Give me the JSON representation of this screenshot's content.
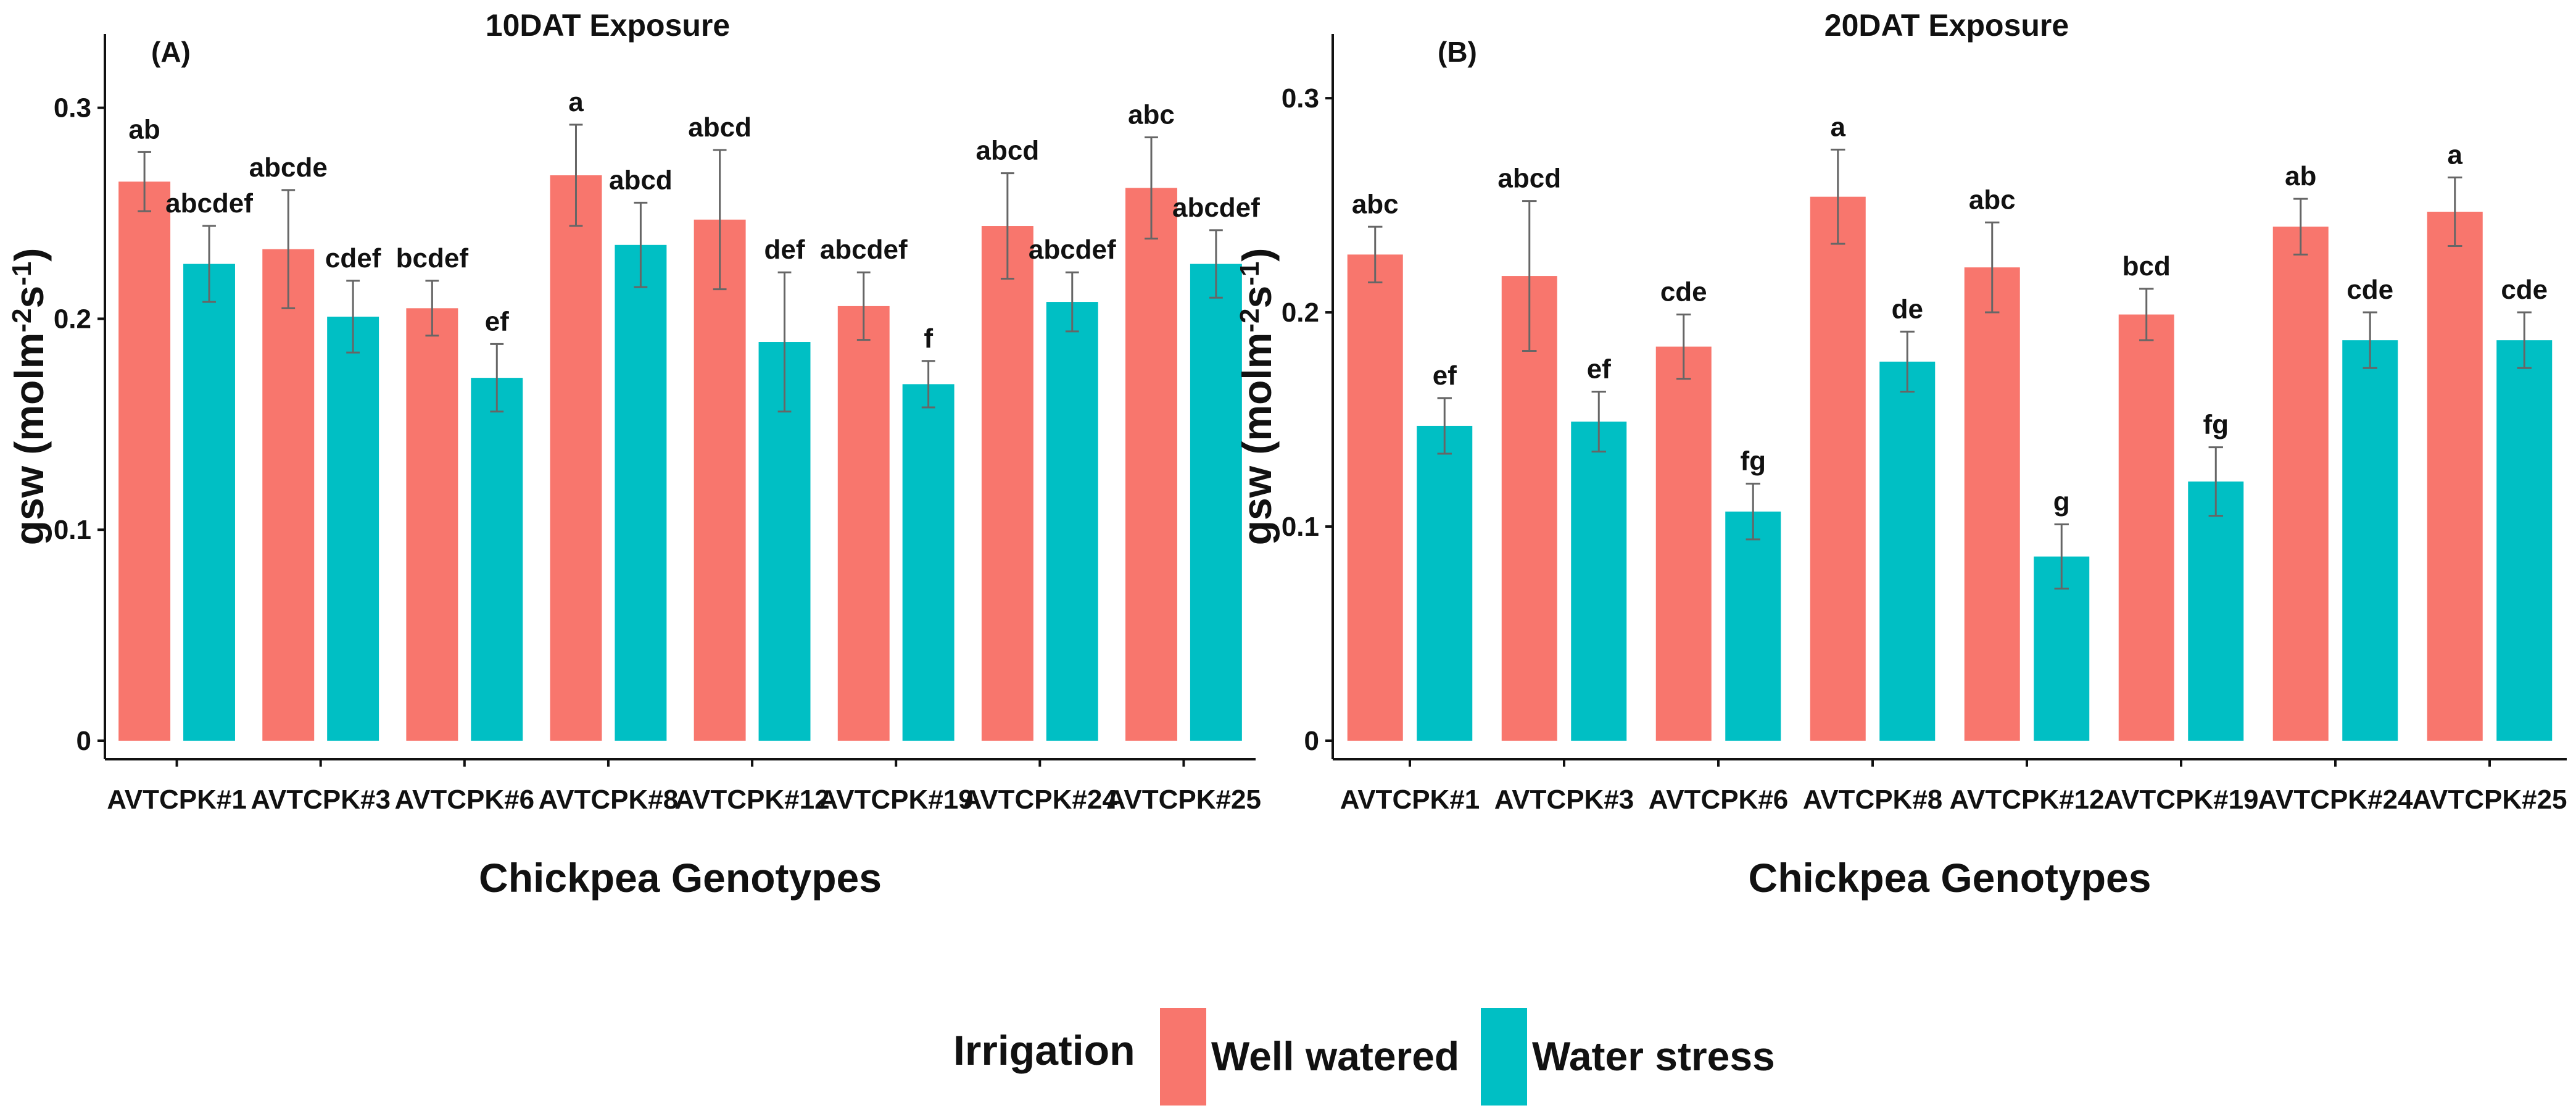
{
  "legend": {
    "title": "Irrigation",
    "items": [
      {
        "label": "Well watered",
        "color": "#F8766D"
      },
      {
        "label": "Water stress",
        "color": "#00BFC4"
      }
    ]
  },
  "chart_data": [
    {
      "type": "bar",
      "panel_label": "(A)",
      "title": "10DAT Exposure",
      "xlabel": "Chickpea Genotypes",
      "ylabel": "gsw (molm-2s-1)",
      "ylim": [
        0,
        0.335
      ],
      "yticks": [
        0,
        0.1,
        0.2,
        0.3
      ],
      "ytick_labels": [
        "0",
        "0.1",
        "0.2",
        "0.3"
      ],
      "categories": [
        "AVTCPK#1",
        "AVTCPK#3",
        "AVTCPK#6",
        "AVTCPK#8",
        "AVTCPK#12",
        "AVTCPK#19",
        "AVTCPK#24",
        "AVTCPK#25"
      ],
      "series": [
        {
          "name": "Well watered",
          "color": "#F8766D",
          "values": [
            0.265,
            0.233,
            0.205,
            0.268,
            0.247,
            0.206,
            0.244,
            0.262
          ],
          "errors": [
            0.014,
            0.028,
            0.013,
            0.024,
            0.033,
            0.016,
            0.025,
            0.024
          ],
          "letters": [
            "ab",
            "abcde",
            "bcdef",
            "a",
            "abcd",
            "abcdef",
            "abcd",
            "abc"
          ]
        },
        {
          "name": "Water stress",
          "color": "#00BFC4",
          "values": [
            0.226,
            0.201,
            0.172,
            0.235,
            0.189,
            0.169,
            0.208,
            0.226
          ],
          "errors": [
            0.018,
            0.017,
            0.016,
            0.02,
            0.033,
            0.011,
            0.014,
            0.016
          ],
          "letters": [
            "abcdef",
            "cdef",
            "ef",
            "abcd",
            "def",
            "f",
            "abcdef",
            "abcdef"
          ]
        }
      ]
    },
    {
      "type": "bar",
      "panel_label": "(B)",
      "title": "20DAT Exposure",
      "xlabel": "Chickpea Genotypes",
      "ylabel": "gsw (molm-2s-1)",
      "ylim": [
        0,
        0.33
      ],
      "yticks": [
        0,
        0.1,
        0.2,
        0.3
      ],
      "ytick_labels": [
        "0",
        "0.1",
        "0.2",
        "0.3"
      ],
      "categories": [
        "AVTCPK#1",
        "AVTCPK#3",
        "AVTCPK#6",
        "AVTCPK#8",
        "AVTCPK#12",
        "AVTCPK#19",
        "AVTCPK#24",
        "AVTCPK#25"
      ],
      "series": [
        {
          "name": "Well watered",
          "color": "#F8766D",
          "values": [
            0.227,
            0.217,
            0.184,
            0.254,
            0.221,
            0.199,
            0.24,
            0.247
          ],
          "errors": [
            0.013,
            0.035,
            0.015,
            0.022,
            0.021,
            0.012,
            0.013,
            0.016
          ],
          "letters": [
            "abc",
            "abcd",
            "cde",
            "a",
            "abc",
            "bcd",
            "ab",
            "a"
          ]
        },
        {
          "name": "Water stress",
          "color": "#00BFC4",
          "values": [
            0.147,
            0.149,
            0.107,
            0.177,
            0.086,
            0.121,
            0.187,
            0.187
          ],
          "errors": [
            0.013,
            0.014,
            0.013,
            0.014,
            0.015,
            0.016,
            0.013,
            0.013
          ],
          "letters": [
            "ef",
            "ef",
            "fg",
            "de",
            "g",
            "fg",
            "cde",
            "cde"
          ]
        }
      ]
    }
  ]
}
